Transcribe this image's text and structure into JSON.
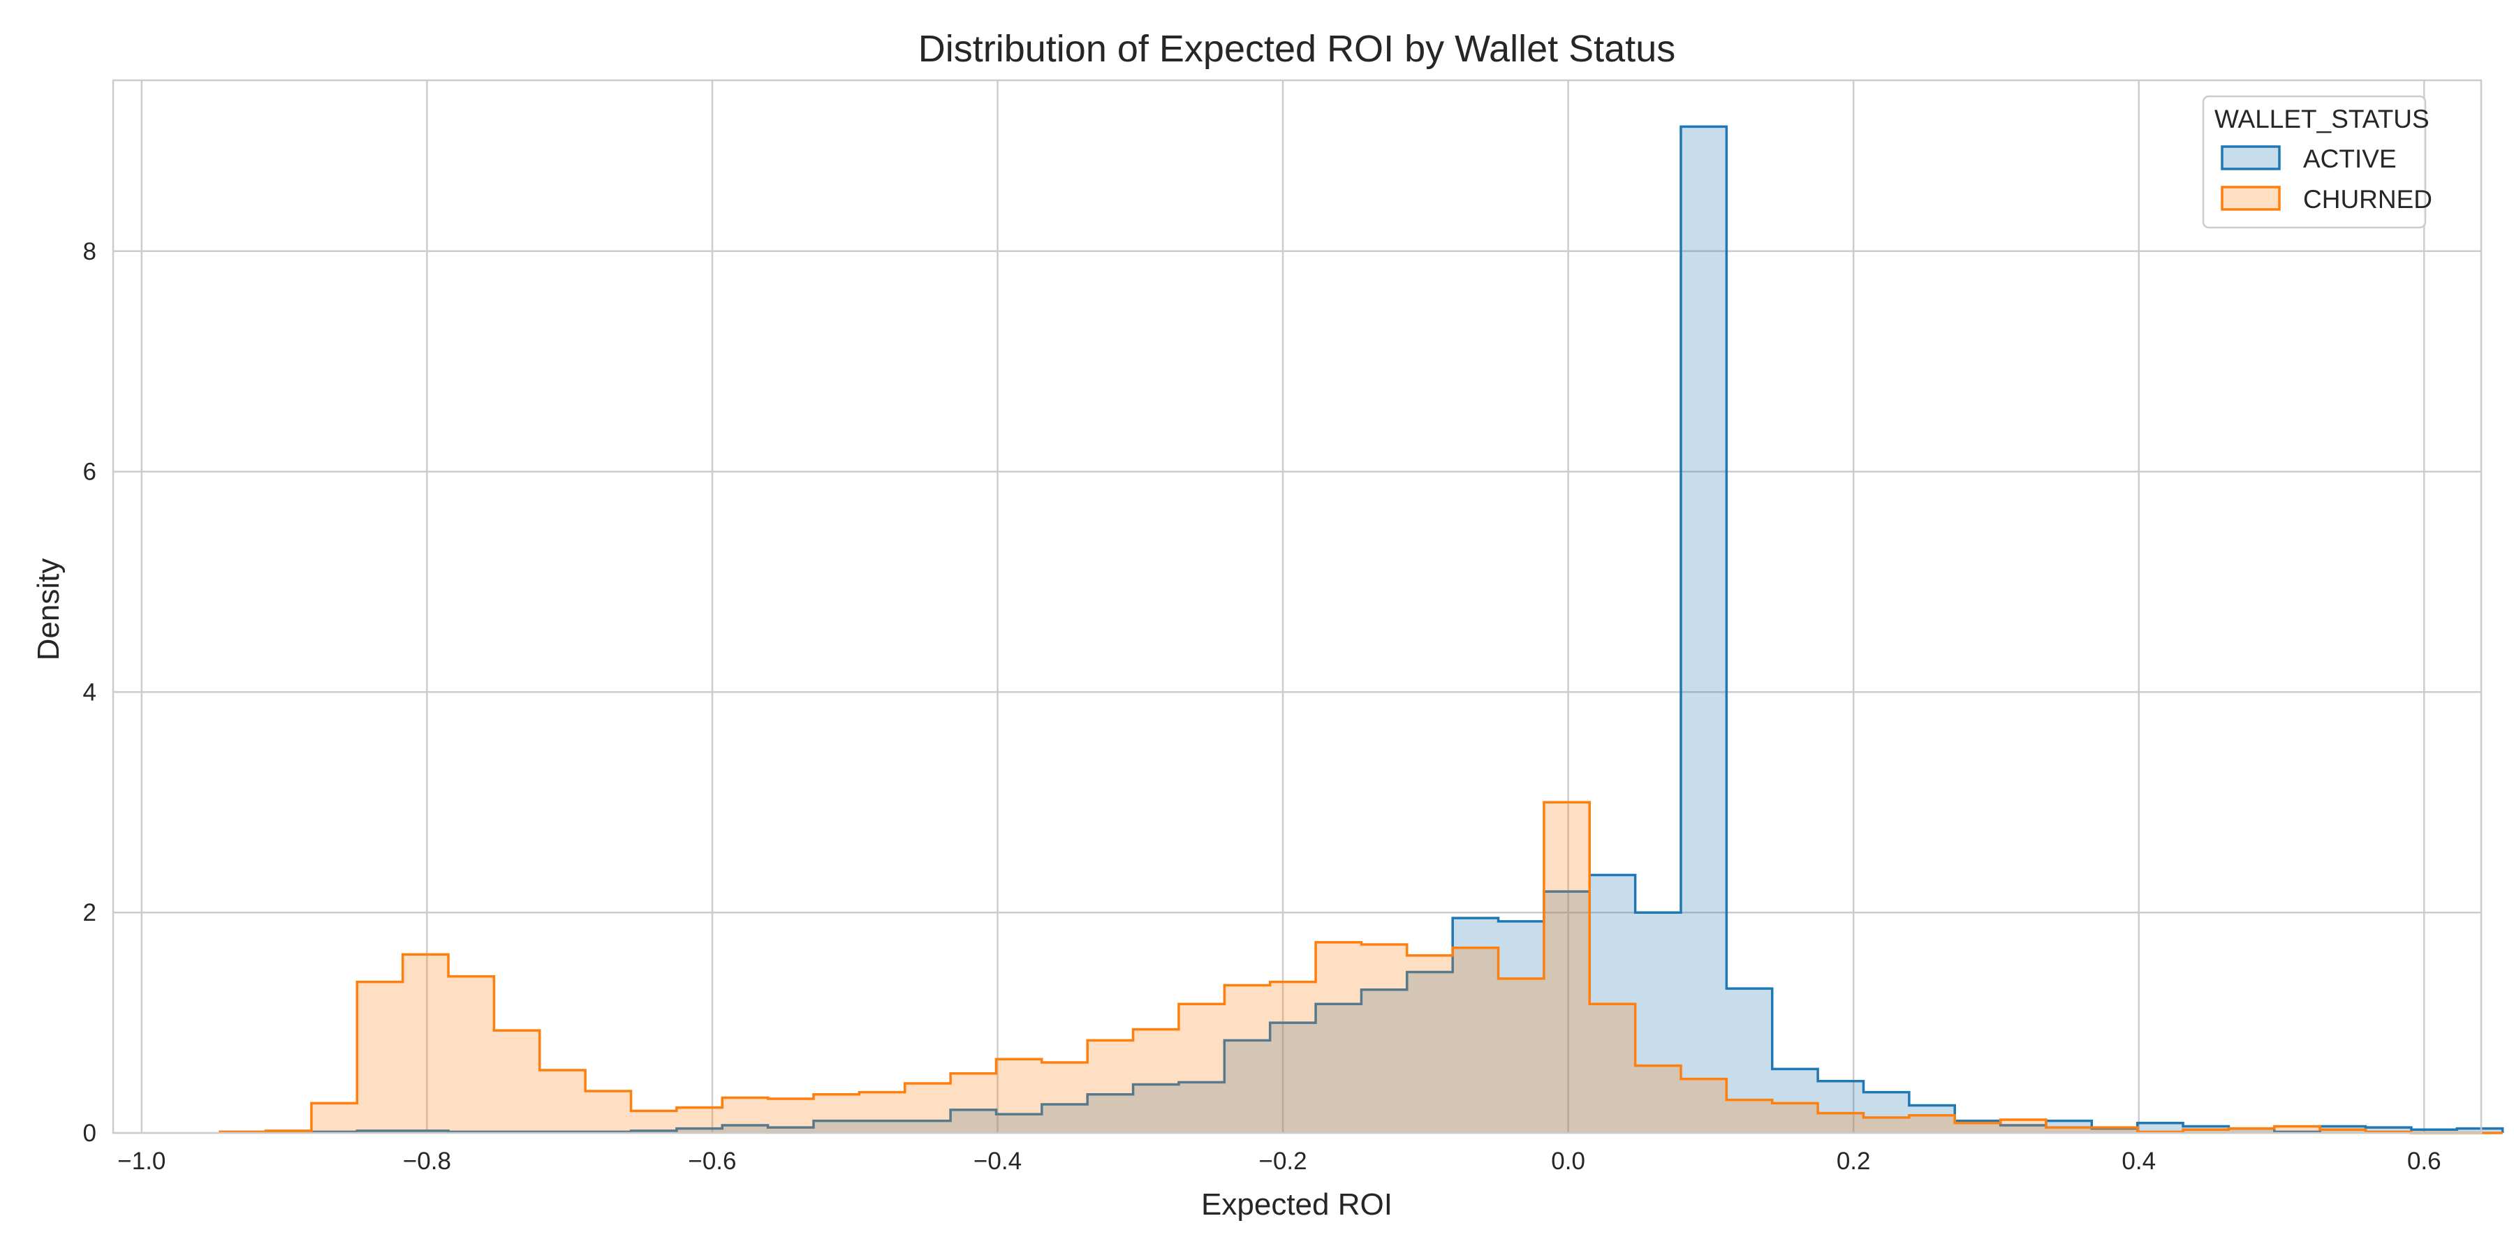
{
  "chart_data": {
    "type": "histogram",
    "title": "Distribution of Expected ROI by Wallet Status",
    "xlabel": "Expected ROI",
    "ylabel": "Density",
    "xlim": [
      -1.02,
      0.64
    ],
    "ylim": [
      0,
      9.55
    ],
    "xticks": [
      -1.0,
      -0.8,
      -0.6,
      -0.4,
      -0.2,
      0.0,
      0.2,
      0.4,
      0.6
    ],
    "xtick_labels": [
      "−1.0",
      "−0.8",
      "−0.6",
      "−0.4",
      "−0.2",
      "0.0",
      "0.2",
      "0.4",
      "0.6"
    ],
    "yticks": [
      0,
      2,
      4,
      6,
      8
    ],
    "ytick_labels": [
      "0",
      "2",
      "4",
      "6",
      "8"
    ],
    "grid": true,
    "legend": {
      "title": "WALLET_STATUS",
      "placement": "top-right"
    },
    "bin_start": -0.945,
    "bin_width": 0.032,
    "series": [
      {
        "name": "ACTIVE",
        "line_color": "#1f77b4",
        "fill_color": "#1f77b4",
        "fill_opacity": 0.25,
        "values": [
          0.01,
          0.01,
          0.01,
          0.02,
          0.02,
          0.01,
          0.01,
          0.01,
          0.01,
          0.02,
          0.04,
          0.07,
          0.05,
          0.11,
          0.11,
          0.11,
          0.21,
          0.17,
          0.26,
          0.35,
          0.44,
          0.46,
          0.84,
          1.0,
          1.17,
          1.3,
          1.46,
          1.95,
          1.92,
          2.19,
          2.34,
          2.0,
          9.13,
          1.31,
          0.58,
          0.47,
          0.37,
          0.25,
          0.11,
          0.07,
          0.11,
          0.04,
          0.09,
          0.06,
          0.04,
          0.01,
          0.06,
          0.05,
          0.03,
          0.04
        ]
      },
      {
        "name": "CHURNED",
        "line_color": "#ff7f0e",
        "fill_color": "#ff7f0e",
        "fill_opacity": 0.25,
        "values": [
          0.01,
          0.02,
          0.27,
          1.37,
          1.62,
          1.42,
          0.93,
          0.57,
          0.38,
          0.2,
          0.23,
          0.32,
          0.31,
          0.35,
          0.37,
          0.45,
          0.54,
          0.67,
          0.64,
          0.84,
          0.94,
          1.17,
          1.34,
          1.37,
          1.73,
          1.71,
          1.61,
          1.68,
          1.4,
          3.0,
          1.17,
          0.61,
          0.49,
          0.3,
          0.27,
          0.18,
          0.14,
          0.16,
          0.09,
          0.12,
          0.05,
          0.05,
          0.01,
          0.03,
          0.04,
          0.06,
          0.03,
          0.01,
          0.0,
          0.0
        ]
      }
    ]
  }
}
